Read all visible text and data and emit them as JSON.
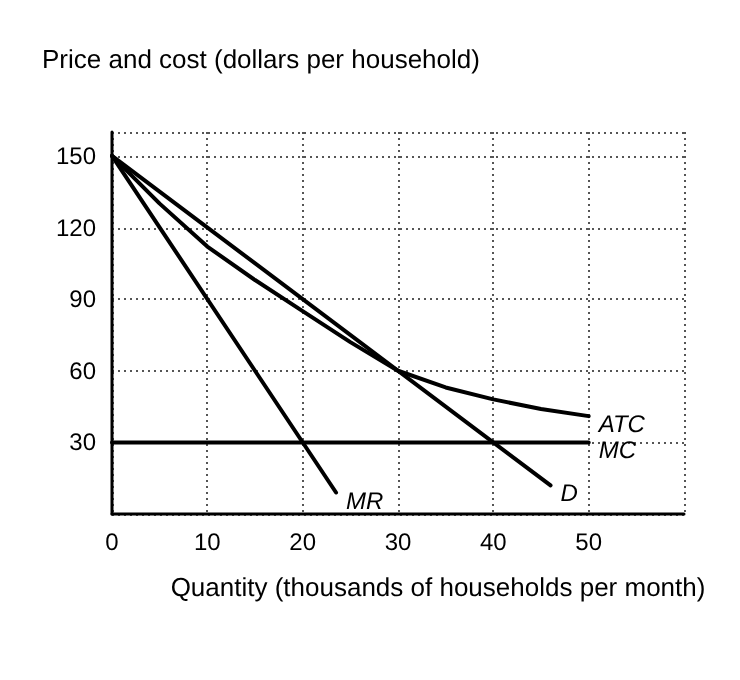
{
  "chart_data": {
    "type": "line",
    "ylabel": "Price and cost (dollars per household)",
    "xlabel": "Quantity (thousands of households per month)",
    "xlim": [
      0,
      60
    ],
    "ylim": [
      0,
      160
    ],
    "xticks": [
      0,
      10,
      20,
      30,
      40,
      50
    ],
    "yticks": [
      30,
      60,
      90,
      120,
      150
    ],
    "grid": true,
    "marker": "none",
    "line_style": "solid",
    "series": [
      {
        "color": "#000000",
        "x": [
          0,
          46
        ],
        "values": [
          150,
          12
        ]
      },
      {
        "color": "#000000",
        "x": [
          0,
          23.5
        ],
        "values": [
          150,
          9
        ]
      },
      {
        "color": "#000000",
        "x": [
          0,
          5,
          10,
          15,
          20,
          25,
          30,
          35,
          40,
          45,
          50
        ],
        "values": [
          150,
          130,
          112,
          98,
          85,
          72,
          60,
          53,
          48,
          44,
          41
        ]
      },
      {
        "color": "#000000",
        "x": [
          0,
          50
        ],
        "values": [
          30,
          30
        ]
      }
    ],
    "annotations": [
      {
        "text": "D",
        "x": 46,
        "y": 12
      },
      {
        "text": "MR",
        "x": 23.5,
        "y": 9
      },
      {
        "text": "ATC",
        "x": 50,
        "y": 41
      },
      {
        "text": "MC",
        "x": 50,
        "y": 30
      }
    ]
  }
}
